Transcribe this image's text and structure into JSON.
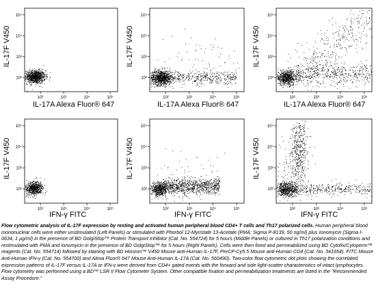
{
  "chart_data": [
    {
      "type": "scatter",
      "panel": "top-left",
      "xlabel": "IL-17A Alexa Fluor® 647",
      "ylabel": "IL-17F V450",
      "x_ticks": [
        "10²",
        "10³",
        "10⁴",
        "10⁵"
      ],
      "y_ticks": [
        "10²",
        "10³",
        "10⁴",
        "10⁵"
      ]
    },
    {
      "type": "scatter",
      "panel": "top-middle",
      "xlabel": "IL-17A Alexa Fluor® 647",
      "ylabel": "IL-17F V450",
      "x_ticks": [
        "10²",
        "10³",
        "10⁴",
        "10⁵"
      ],
      "y_ticks": [
        "10²",
        "10³",
        "10⁴",
        "10⁵"
      ]
    },
    {
      "type": "scatter",
      "panel": "top-right",
      "xlabel": "IL-17A Alexa Fluor® 647",
      "ylabel": "IL-17F V450",
      "x_ticks": [
        "10²",
        "10³",
        "10⁴",
        "10⁵"
      ],
      "y_ticks": [
        "10²",
        "10³",
        "10⁴",
        "10⁵"
      ]
    },
    {
      "type": "scatter",
      "panel": "bottom-left",
      "xlabel": "IFN-γ FITC",
      "ylabel": "IL-17F V450",
      "x_ticks": [
        "10²",
        "10³",
        "10⁴",
        "10⁵"
      ],
      "y_ticks": [
        "10²",
        "10³",
        "10⁴",
        "10⁵"
      ]
    },
    {
      "type": "scatter",
      "panel": "bottom-middle",
      "xlabel": "IFN-γ FITC",
      "ylabel": "IL-17F V450",
      "x_ticks": [
        "10²",
        "10³",
        "10⁴",
        "10⁵"
      ],
      "y_ticks": [
        "10²",
        "10³",
        "10⁴",
        "10⁵"
      ]
    },
    {
      "type": "scatter",
      "panel": "bottom-right",
      "xlabel": "IFN-γ FITC",
      "ylabel": "IL-17F V450",
      "x_ticks": [
        "10²",
        "10³",
        "10⁴",
        "10⁵"
      ],
      "y_ticks": [
        "10²",
        "10³",
        "10⁴",
        "10⁵"
      ]
    }
  ],
  "caption": {
    "title": "Flow cytometric analysis of IL-17F expression by resting and activated human peripheral blood CD4+ T cells and Th17 polarized cells.",
    "body": " Human peripheral blood mononuclear cells were either unstimulated (Left Panels) or stimulated with Phorbol 12-Myristate 13-Acetate (PMA; Sigma P-8139, 50 ng/ml) plus Ionomycin (Sigma I-0634, 1 µg/ml) in the presence of BD GolgiStop™ Protein Transport Inhibitor (Cat. No. 554724) for 5 hours (Middle Panels) or cultured in Th17 polarization conditions and restimulated with PMA and Ionomycin in the presence of BD GolgiStop™ for 5 hours (Right Panels). Cells were then fixed and permeabilized using BD Cytofix/Cytoperm™ reagents (Cat. No. 554714) followed by staining with BD Horizon™ V450 Mouse anti-Human IL-17F, PerCP-Cy5.5 Mouse anti-Human CD4 (Cat. No. 341654), FITC Mouse Anti-Human IFN-γ (Cat. No. 554700) and Alexa Fluor® 647 Mouse Anti-Human IL-17A (Cat. No. 560490). Two-color flow cytometric dot plots showing the correlated expression patterns of IL-17F versus IL-17A or IFN-γ were derived from CD4+ gated events with the forward and side light-scatter characteristics of intact lymphocytes. Flow cytometry was performed using a BD™ LSR II Flow Cytometer System. Other compatible fixation and permeabilization treatments are listed in the \"Recommended Assay Procedure.\""
  }
}
